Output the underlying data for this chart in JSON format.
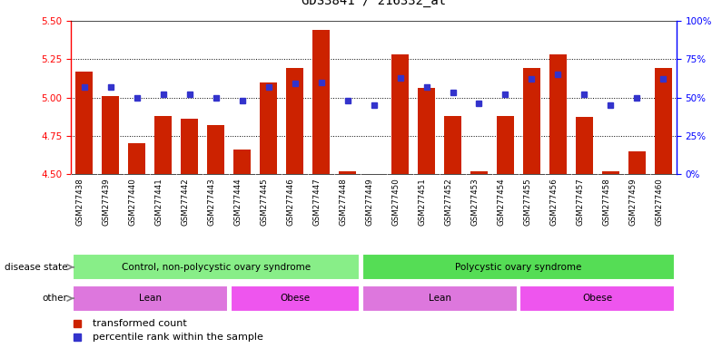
{
  "title": "GDS3841 / 216332_at",
  "samples": [
    "GSM277438",
    "GSM277439",
    "GSM277440",
    "GSM277441",
    "GSM277442",
    "GSM277443",
    "GSM277444",
    "GSM277445",
    "GSM277446",
    "GSM277447",
    "GSM277448",
    "GSM277449",
    "GSM277450",
    "GSM277451",
    "GSM277452",
    "GSM277453",
    "GSM277454",
    "GSM277455",
    "GSM277456",
    "GSM277457",
    "GSM277458",
    "GSM277459",
    "GSM277460"
  ],
  "transformed_count": [
    5.17,
    5.01,
    4.7,
    4.88,
    4.86,
    4.82,
    4.66,
    5.1,
    5.19,
    5.44,
    4.52,
    4.5,
    5.28,
    5.06,
    4.88,
    4.52,
    4.88,
    5.19,
    5.28,
    4.87,
    4.52,
    4.65,
    5.19
  ],
  "percentile_rank": [
    57,
    57,
    50,
    52,
    52,
    50,
    48,
    57,
    59,
    60,
    48,
    45,
    63,
    57,
    53,
    46,
    52,
    62,
    65,
    52,
    45,
    50,
    62
  ],
  "ylim_left": [
    4.5,
    5.5
  ],
  "ylim_right": [
    0,
    100
  ],
  "yticks_left": [
    4.5,
    4.75,
    5.0,
    5.25,
    5.5
  ],
  "yticks_right": [
    0,
    25,
    50,
    75,
    100
  ],
  "ytick_labels_right": [
    "0%",
    "25%",
    "50%",
    "75%",
    "100%"
  ],
  "hlines": [
    4.75,
    5.0,
    5.25
  ],
  "bar_color": "#CC2200",
  "marker_color": "#3333CC",
  "bar_width": 0.65,
  "disease_state_groups": [
    {
      "label": "Control, non-polycystic ovary syndrome",
      "start": 0,
      "end": 10,
      "color": "#88EE88"
    },
    {
      "label": "Polycystic ovary syndrome",
      "start": 11,
      "end": 22,
      "color": "#55DD55"
    }
  ],
  "other_groups": [
    {
      "label": "Lean",
      "start": 0,
      "end": 5,
      "color": "#DD77DD"
    },
    {
      "label": "Obese",
      "start": 6,
      "end": 10,
      "color": "#EE55EE"
    },
    {
      "label": "Lean",
      "start": 11,
      "end": 16,
      "color": "#DD77DD"
    },
    {
      "label": "Obese",
      "start": 17,
      "end": 22,
      "color": "#EE55EE"
    }
  ],
  "legend_items": [
    {
      "label": "transformed count",
      "color": "#CC2200"
    },
    {
      "label": "percentile rank within the sample",
      "color": "#3333CC"
    }
  ],
  "disease_state_label": "disease state",
  "other_label": "other",
  "bar_bottom": 4.5,
  "xtick_bg_color": "#CCCCCC",
  "title_fontsize": 10,
  "figure_bg": "#FFFFFF"
}
